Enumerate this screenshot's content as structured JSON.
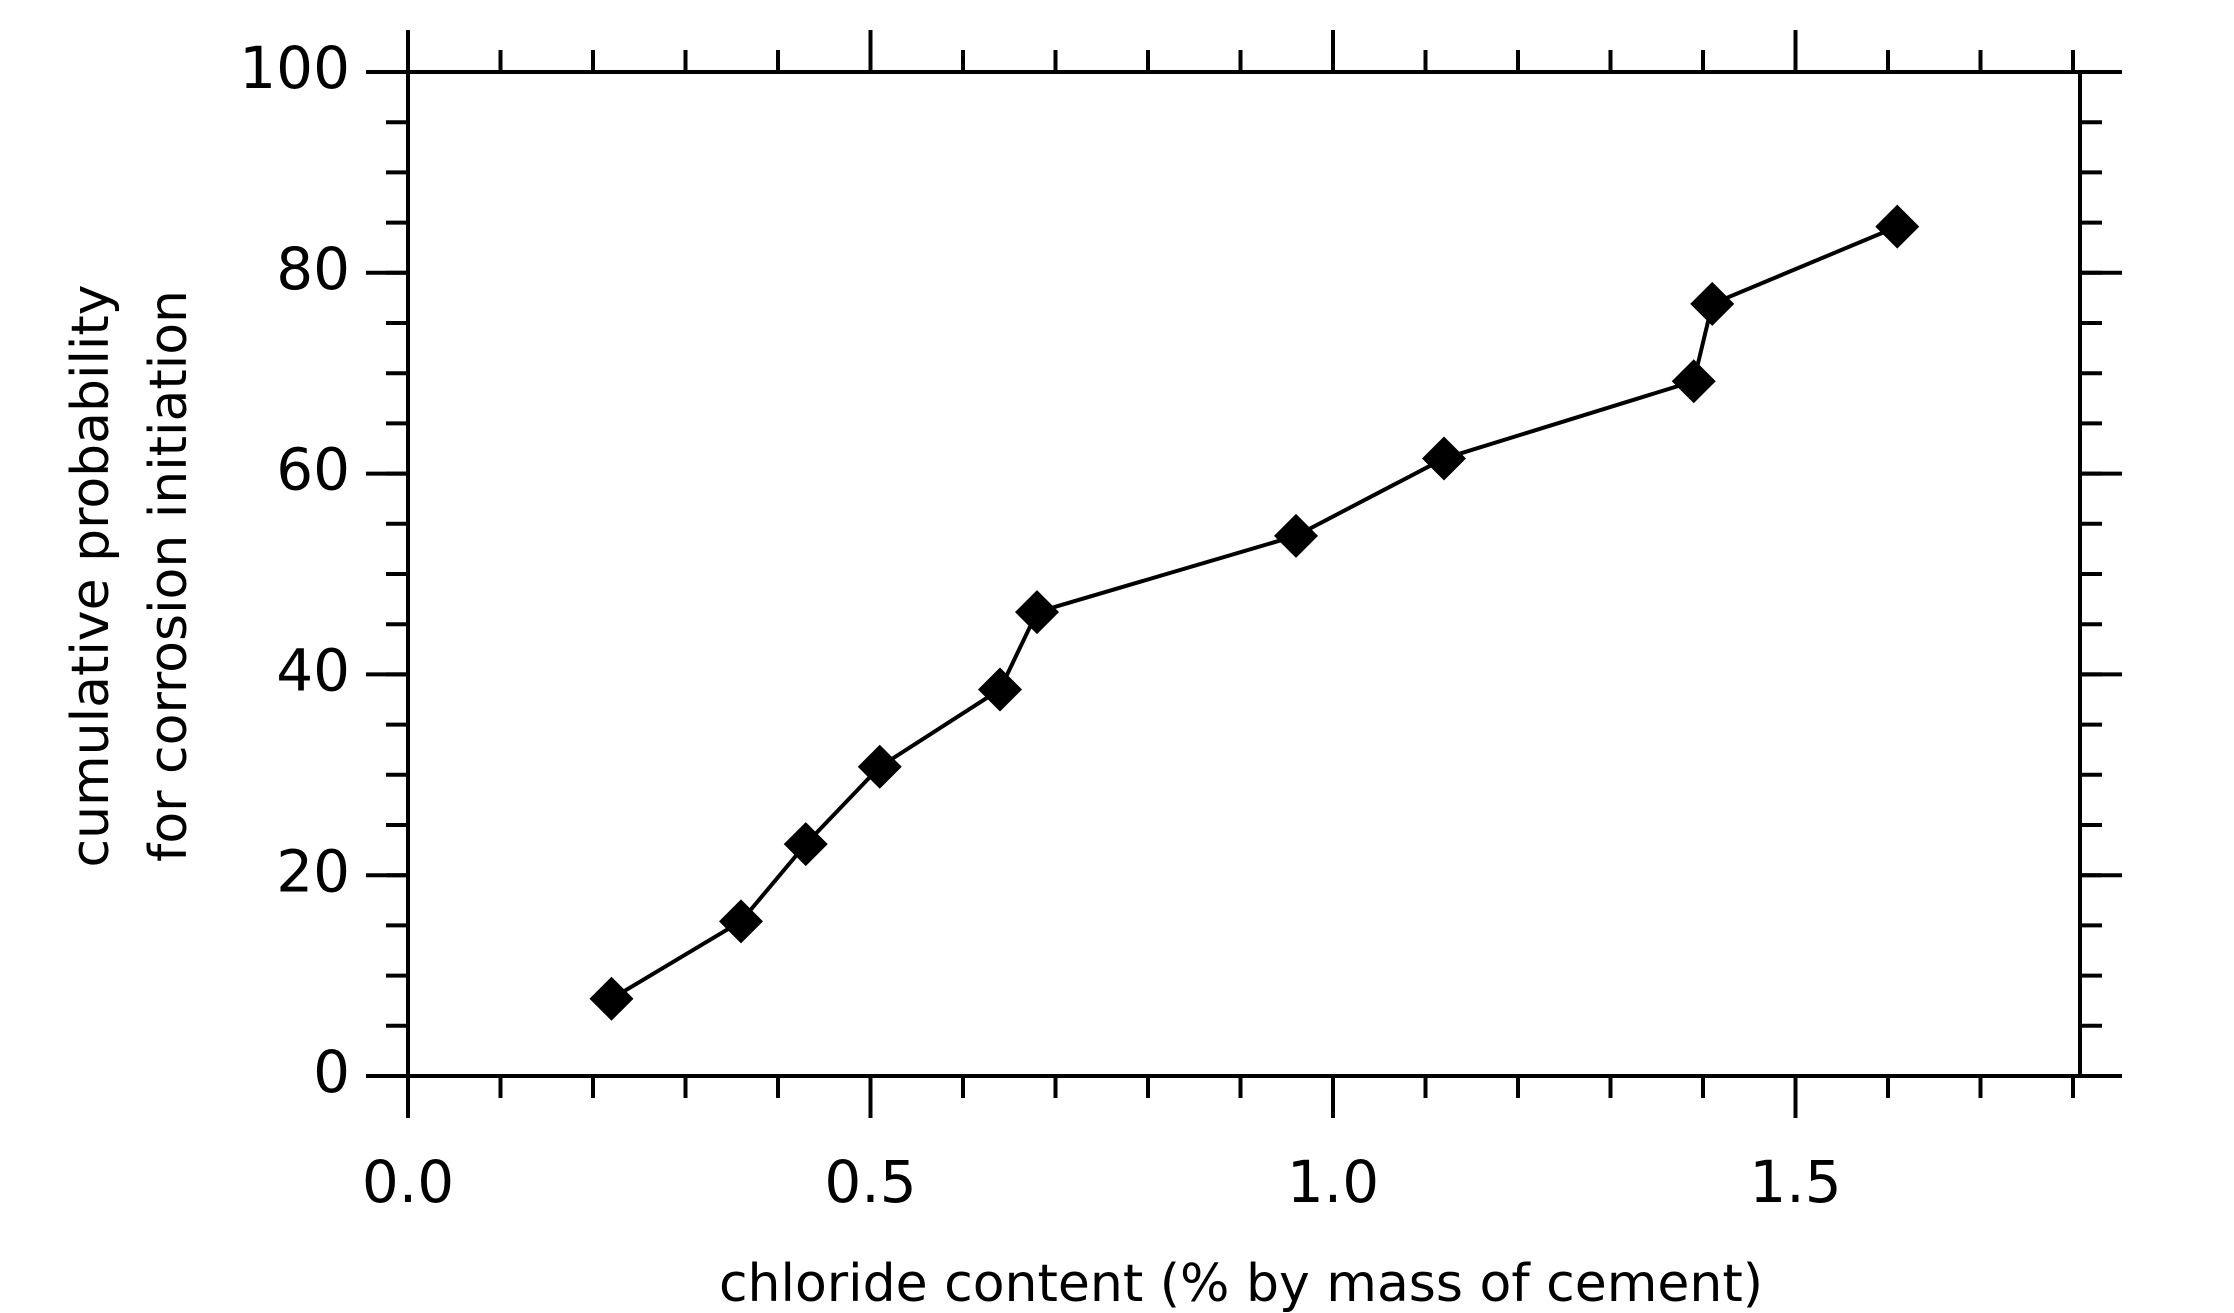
{
  "chart_data": {
    "type": "line",
    "xlabel": "chloride content (% by mass of cement)",
    "ylabel": [
      "cumulative probability",
      "for corrosion initiation"
    ],
    "x": [
      0.22,
      0.36,
      0.43,
      0.51,
      0.64,
      0.68,
      0.96,
      1.12,
      1.39,
      1.41,
      1.61
    ],
    "series": [
      {
        "color": "#000000",
        "values": [
          7.7,
          15.4,
          23.1,
          30.8,
          38.5,
          46.2,
          53.8,
          61.5,
          69.2,
          76.9,
          84.6
        ]
      }
    ],
    "xlim": [
      0,
      1.8
    ],
    "xticks": [
      {
        "value": 0,
        "label": "0.0"
      },
      {
        "value": 0.5,
        "label": "0.5"
      },
      {
        "value": 1,
        "label": "1.0"
      },
      {
        "value": 1.5,
        "label": "1.5"
      }
    ],
    "ylim": [
      0,
      100
    ],
    "yticks": [
      0,
      20,
      40,
      60,
      80,
      100
    ],
    "grid": false
  }
}
